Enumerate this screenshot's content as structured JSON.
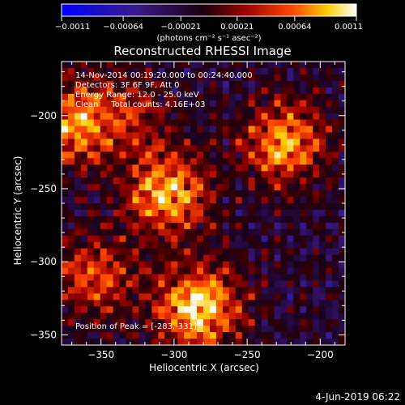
{
  "chart_data": {
    "type": "heatmap",
    "title": "Reconstructed RHESSI Image",
    "xlabel": "Heliocentric X (arcsec)",
    "ylabel": "Heliocentric Y (arcsec)",
    "xlim": [
      -377,
      -183
    ],
    "ylim": [
      -357,
      -163
    ],
    "x_ticks": [
      -350,
      -300,
      -250,
      -200
    ],
    "y_ticks": [
      -200,
      -250,
      -300,
      -350
    ],
    "colorbar": {
      "min": -0.0011,
      "max": 0.0011,
      "tick_values": [
        -0.0011,
        -0.00064,
        -0.00021,
        0.00021,
        0.00064,
        0.0011
      ],
      "tick_labels": [
        "-0.0011",
        "-0.00064",
        "-0.00021",
        "0.00021",
        "0.00064",
        "0.0011"
      ],
      "units": "(photons cm⁻² s⁻¹ asec⁻²)"
    },
    "sources": [
      {
        "x": -305,
        "y": -253,
        "strength": 0.85
      },
      {
        "x": -283,
        "y": -331,
        "strength": 1.0
      },
      {
        "x": -224,
        "y": -219,
        "strength": 0.8
      },
      {
        "x": -370,
        "y": -205,
        "strength": 0.75
      },
      {
        "x": -355,
        "y": -310,
        "strength": 0.6
      },
      {
        "x": -330,
        "y": -200,
        "strength": 0.4
      }
    ],
    "annotations": [
      "14-Nov-2014 00:19:20.000 to 00:24:40.000",
      "Detectors: 3F 6F 9F, Att 0",
      "Energy Range: 12.0 - 25.0 keV",
      "Clean     Total counts: 4.16E+03",
      "Position of Peak = [-283,-331]"
    ],
    "grid": false
  },
  "footer": {
    "date": "4-Jun-2019 06:22"
  }
}
